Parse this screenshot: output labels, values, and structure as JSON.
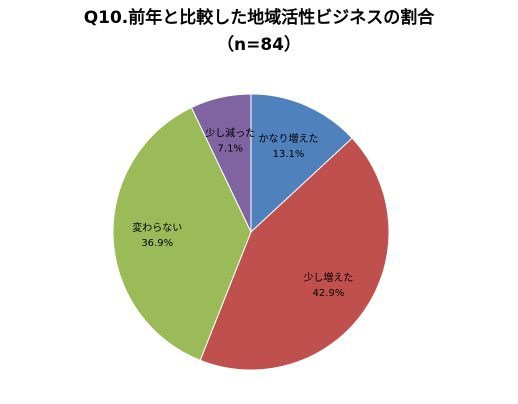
{
  "chart_data": {
    "type": "pie",
    "title": "Q10.前年と比較した地域活性ビジネスの割合",
    "subtitle": "（n=84）",
    "categories": [
      "かなり増えた",
      "少し増えた",
      "変わらない",
      "少し減った"
    ],
    "values": [
      13.1,
      42.9,
      36.9,
      7.1
    ],
    "value_labels": [
      "13.1%",
      "42.9%",
      "36.9%",
      "7.1%"
    ],
    "colors": [
      "#4f81bd",
      "#c0504d",
      "#9bbb59",
      "#8064a2"
    ]
  }
}
